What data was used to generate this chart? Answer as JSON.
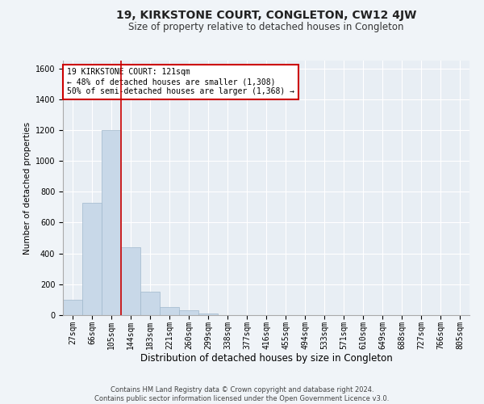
{
  "title": "19, KIRKSTONE COURT, CONGLETON, CW12 4JW",
  "subtitle": "Size of property relative to detached houses in Congleton",
  "xlabel": "Distribution of detached houses by size in Congleton",
  "ylabel": "Number of detached properties",
  "bar_color": "#c8d8e8",
  "bar_edge_color": "#a0b8cc",
  "categories": [
    "27sqm",
    "66sqm",
    "105sqm",
    "144sqm",
    "183sqm",
    "221sqm",
    "260sqm",
    "299sqm",
    "338sqm",
    "377sqm",
    "416sqm",
    "455sqm",
    "494sqm",
    "533sqm",
    "571sqm",
    "610sqm",
    "649sqm",
    "688sqm",
    "727sqm",
    "766sqm",
    "805sqm"
  ],
  "values": [
    100,
    730,
    1200,
    440,
    150,
    50,
    30,
    10,
    0,
    0,
    0,
    0,
    0,
    0,
    0,
    0,
    0,
    0,
    0,
    0,
    0
  ],
  "ylim": [
    0,
    1650
  ],
  "yticks": [
    0,
    200,
    400,
    600,
    800,
    1000,
    1200,
    1400,
    1600
  ],
  "property_line_x": 2.5,
  "property_line_color": "#cc0000",
  "annotation_text": "19 KIRKSTONE COURT: 121sqm\n← 48% of detached houses are smaller (1,308)\n50% of semi-detached houses are larger (1,368) →",
  "annotation_box_color": "white",
  "annotation_box_edge_color": "#cc0000",
  "footer_line1": "Contains HM Land Registry data © Crown copyright and database right 2024.",
  "footer_line2": "Contains public sector information licensed under the Open Government Licence v3.0.",
  "background_color": "#f0f4f8",
  "plot_background": "#e8eef4",
  "title_fontsize": 10,
  "subtitle_fontsize": 8.5,
  "ylabel_fontsize": 7.5,
  "xlabel_fontsize": 8.5,
  "tick_fontsize": 7,
  "annotation_fontsize": 7,
  "footer_fontsize": 6
}
